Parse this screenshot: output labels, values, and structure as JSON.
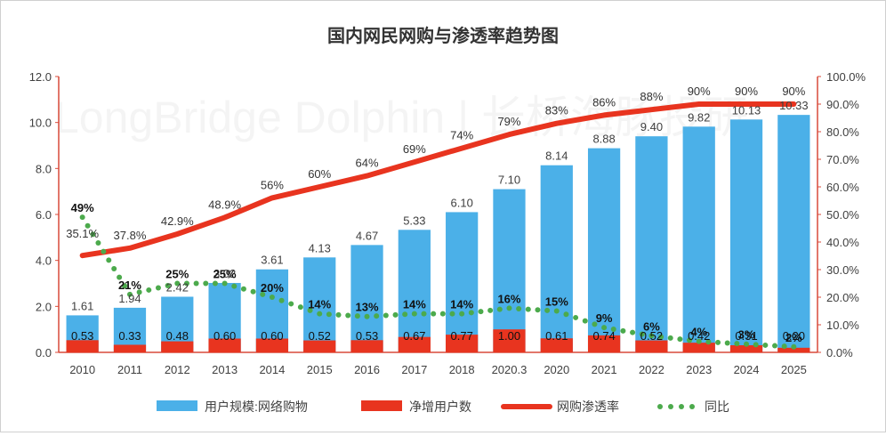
{
  "chart_data": {
    "type": "bar",
    "title": "国内网民网购与渗透率趋势图",
    "watermark": "LongBridge Dolphin | 长桥海豚投研",
    "categories": [
      "2010",
      "2011",
      "2012",
      "2013",
      "2014",
      "2015",
      "2016",
      "2017",
      "2018",
      "2020.3",
      "2020",
      "2021",
      "2022",
      "2023",
      "2024",
      "2025"
    ],
    "y_left": {
      "min": 0,
      "max": 12,
      "step": 2,
      "ticks": [
        "0.0",
        "2.0",
        "4.0",
        "6.0",
        "8.0",
        "10.0",
        "12.0"
      ]
    },
    "y_right": {
      "min": 0,
      "max": 100,
      "step": 10,
      "ticks": [
        "0.0%",
        "10.0%",
        "20.0%",
        "30.0%",
        "40.0%",
        "50.0%",
        "60.0%",
        "70.0%",
        "80.0%",
        "90.0%",
        "100.0%"
      ]
    },
    "series": [
      {
        "name": "用户规模:网络购物",
        "type": "bar",
        "axis": "left",
        "color": "#4bb0e8",
        "values": [
          1.61,
          1.94,
          2.42,
          3.02,
          3.61,
          4.13,
          4.67,
          5.33,
          6.1,
          7.1,
          8.14,
          8.88,
          9.4,
          9.82,
          10.13,
          10.33
        ],
        "labels": [
          "1.61",
          "1.94",
          "2.42",
          "3.02",
          "3.61",
          "4.13",
          "4.67",
          "5.33",
          "6.10",
          "7.10",
          "8.14",
          "8.88",
          "9.40",
          "9.82",
          "10.13",
          "10.33"
        ]
      },
      {
        "name": "净增用户数",
        "type": "bar",
        "axis": "left",
        "color": "#e8341f",
        "values": [
          0.53,
          0.33,
          0.48,
          0.6,
          0.6,
          0.52,
          0.53,
          0.67,
          0.77,
          1.0,
          0.61,
          0.74,
          0.52,
          0.42,
          0.31,
          0.2
        ],
        "labels": [
          "0.53",
          "0.33",
          "0.48",
          "0.60",
          "0.60",
          "0.52",
          "0.53",
          "0.67",
          "0.77",
          "1.00",
          "0.61",
          "0.74",
          "0.52",
          "0.42",
          "0.31",
          "0.20"
        ]
      },
      {
        "name": "网购渗透率",
        "type": "line",
        "axis": "right",
        "color": "#e8341f",
        "values": [
          35.1,
          37.8,
          42.9,
          48.9,
          56,
          60,
          64,
          69,
          74,
          79,
          83,
          86,
          88,
          90,
          90,
          90
        ],
        "labels": [
          "35.1%",
          "37.8%",
          "42.9%",
          "48.9%",
          "56%",
          "60%",
          "64%",
          "69%",
          "74%",
          "79%",
          "83%",
          "86%",
          "88%",
          "90%",
          "90%",
          "90%"
        ]
      },
      {
        "name": "同比",
        "type": "line-dotted",
        "axis": "right",
        "color": "#4caa4c",
        "values": [
          49,
          21,
          25,
          25,
          20,
          14,
          13,
          14,
          14,
          16,
          15,
          9,
          6,
          4,
          3,
          2
        ],
        "labels": [
          "49%",
          "21%",
          "25%",
          "25%",
          "20%",
          "14%",
          "13%",
          "14%",
          "14%",
          "16%",
          "15%",
          "9%",
          "6%",
          "4%",
          "3%",
          "2%"
        ]
      }
    ],
    "legend_position": "bottom",
    "grid": false
  }
}
